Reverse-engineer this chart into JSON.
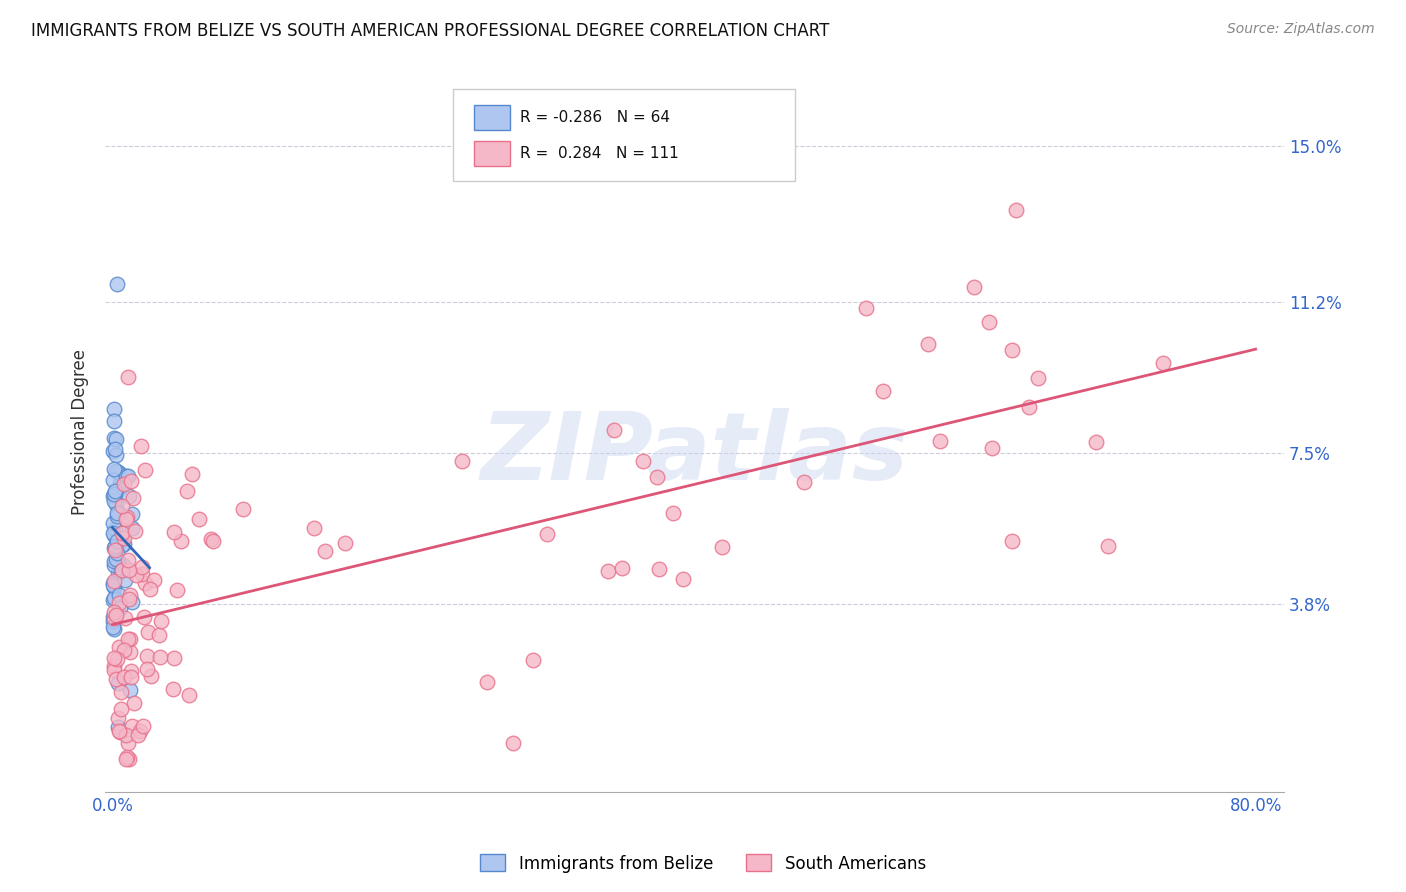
{
  "title": "IMMIGRANTS FROM BELIZE VS SOUTH AMERICAN PROFESSIONAL DEGREE CORRELATION CHART",
  "source": "Source: ZipAtlas.com",
  "ylabel": "Professional Degree",
  "ytick_labels": [
    "15.0%",
    "11.2%",
    "7.5%",
    "3.8%"
  ],
  "ytick_values": [
    0.15,
    0.112,
    0.075,
    0.038
  ],
  "xlim": [
    -0.005,
    0.82
  ],
  "ylim": [
    -0.008,
    0.168
  ],
  "belize_color": "#aec6f0",
  "belize_edge_color": "#5588cc",
  "south_color": "#f4b8c8",
  "south_edge_color": "#e8708a",
  "belize_R": "-0.286",
  "belize_N": "64",
  "south_R": "0.284",
  "south_N": "111",
  "legend_belize_label": "Immigrants from Belize",
  "legend_south_label": "South Americans",
  "watermark": "ZIPatlas",
  "belize_trend_color": "#3366bb",
  "south_trend_color": "#dd5577",
  "title_fontsize": 12,
  "source_fontsize": 10,
  "marker_size": 110
}
